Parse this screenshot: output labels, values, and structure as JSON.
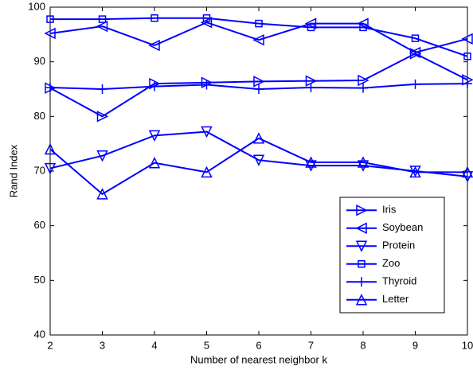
{
  "chart_data": {
    "type": "line",
    "xlabel": "Number of nearest neighbor k",
    "ylabel": "Rand Index",
    "x": [
      2,
      3,
      4,
      5,
      6,
      7,
      8,
      9,
      10
    ],
    "xlim": [
      2,
      10
    ],
    "xticks": [
      2,
      3,
      4,
      5,
      6,
      7,
      8,
      9,
      10
    ],
    "ylim": [
      40,
      100
    ],
    "yticks": [
      40,
      50,
      60,
      70,
      80,
      90,
      100
    ],
    "grid": false,
    "legend": "lower right",
    "series": [
      {
        "name": "Iris",
        "color": "#0000ff",
        "marker": "triangle-right",
        "values": [
          85.2,
          80,
          86,
          86.2,
          86.4,
          86.5,
          86.6,
          91.5,
          86.7
        ]
      },
      {
        "name": "Soybean",
        "color": "#0000ff",
        "marker": "triangle-left",
        "values": [
          95.2,
          96.5,
          93,
          97.2,
          94,
          97,
          97,
          91.7,
          94.2
        ]
      },
      {
        "name": "Protein",
        "color": "#0000ff",
        "marker": "triangle-down",
        "values": [
          70.5,
          72.8,
          76.5,
          77.2,
          72,
          71,
          71,
          70,
          69
        ]
      },
      {
        "name": "Zoo",
        "color": "#0000ff",
        "marker": "square",
        "values": [
          97.8,
          97.8,
          98,
          98,
          97,
          96.3,
          96.3,
          94.3,
          91
        ]
      },
      {
        "name": "Thyroid",
        "color": "#0000ff",
        "marker": "plus",
        "values": [
          85.3,
          85,
          85.5,
          85.8,
          85,
          85.3,
          85.2,
          85.9,
          86
        ]
      },
      {
        "name": "Letter",
        "color": "#0000ff",
        "marker": "triangle-up",
        "values": [
          74,
          65.8,
          71.5,
          69.8,
          76,
          71.6,
          71.6,
          69.8,
          69.8
        ]
      }
    ]
  }
}
